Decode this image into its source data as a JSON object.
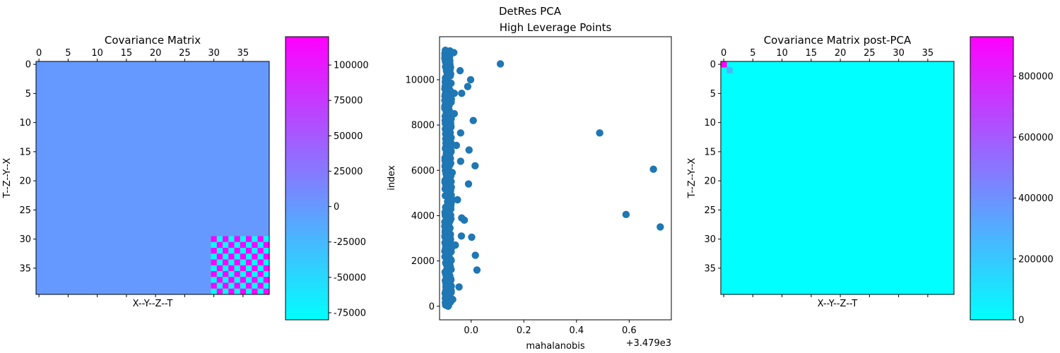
{
  "suptitle": "DetRes PCA",
  "chart_data": [
    {
      "type": "heatmap",
      "title": "Covariance Matrix",
      "xlabel": "X--Y--Z--T",
      "ylabel": "T--Z--Y--X",
      "size": 40,
      "x_ticks": [
        "0",
        "5",
        "10",
        "15",
        "20",
        "25",
        "30",
        "35"
      ],
      "y_ticks": [
        "0",
        "5",
        "10",
        "15",
        "20",
        "25",
        "30",
        "35"
      ],
      "block_start": 30,
      "base_value": 0,
      "block_values": [
        120000,
        -80000
      ],
      "colorbar": {
        "range": [
          -80000,
          120000
        ],
        "ticks": [
          "-75000",
          "-50000",
          "-25000",
          "0",
          "25000",
          "50000",
          "75000",
          "100000"
        ],
        "tick_values": [
          -75000,
          -50000,
          -25000,
          0,
          25000,
          50000,
          75000,
          100000
        ]
      },
      "colormap": [
        "#00ffff",
        "#ff00ff"
      ]
    },
    {
      "type": "scatter",
      "title": "High Leverage Points",
      "xlabel": "mahalanobis",
      "ylabel": "index",
      "offset_text": "+3.479e3",
      "color": "#1f77b4",
      "xlim": [
        -0.12,
        0.76
      ],
      "ylim": [
        -600,
        11900
      ],
      "x_ticks": [
        "0.0",
        "0.2",
        "0.4",
        "0.6"
      ],
      "x_tick_values": [
        0.0,
        0.2,
        0.4,
        0.6
      ],
      "y_ticks": [
        "0",
        "2000",
        "4000",
        "6000",
        "8000",
        "10000"
      ],
      "y_tick_values": [
        0,
        2000,
        4000,
        6000,
        8000,
        10000
      ],
      "points": [
        [
          0.111,
          10700
        ],
        [
          0.488,
          7650
        ],
        [
          0.692,
          6050
        ],
        [
          0.588,
          4050
        ],
        [
          0.718,
          3500
        ],
        [
          -0.002,
          10000
        ],
        [
          -0.013,
          9700
        ],
        [
          -0.042,
          10400
        ],
        [
          -0.036,
          9400
        ],
        [
          0.008,
          8200
        ],
        [
          -0.04,
          7650
        ],
        [
          0.015,
          6200
        ],
        [
          -0.008,
          6900
        ],
        [
          -0.04,
          6400
        ],
        [
          -0.01,
          5400
        ],
        [
          -0.026,
          3800
        ],
        [
          -0.036,
          3900
        ],
        [
          -0.037,
          3100
        ],
        [
          0.002,
          3050
        ],
        [
          0.016,
          2250
        ],
        [
          0.022,
          1600
        ],
        [
          -0.046,
          850
        ],
        [
          -0.052,
          4700
        ],
        [
          -0.056,
          7100
        ],
        [
          -0.064,
          9400
        ],
        [
          -0.066,
          11200
        ],
        [
          -0.064,
          8500
        ],
        [
          -0.06,
          2700
        ],
        [
          -0.07,
          300
        ],
        [
          -0.072,
          5900
        ]
      ],
      "dense_column": {
        "x_min": -0.1,
        "x_max": -0.075,
        "y_min": 0,
        "y_max": 11300,
        "count": 420
      }
    },
    {
      "type": "heatmap",
      "title": "Covariance Matrix post-PCA",
      "xlabel": "X--Y--Z--T",
      "ylabel": "T--Z--Y--X",
      "size": 40,
      "x_ticks": [
        "0",
        "5",
        "10",
        "15",
        "20",
        "25",
        "30",
        "35"
      ],
      "y_ticks": [
        "0",
        "5",
        "10",
        "15",
        "20",
        "25",
        "30",
        "35"
      ],
      "base_value": 0,
      "cells": [
        [
          0,
          0,
          930000
        ],
        [
          1,
          1,
          260000
        ]
      ],
      "colorbar": {
        "range": [
          0,
          930000
        ],
        "ticks": [
          "0",
          "200000",
          "400000",
          "600000",
          "800000"
        ],
        "tick_values": [
          0,
          200000,
          400000,
          600000,
          800000
        ]
      },
      "colormap": [
        "#00ffff",
        "#ff00ff"
      ]
    }
  ]
}
